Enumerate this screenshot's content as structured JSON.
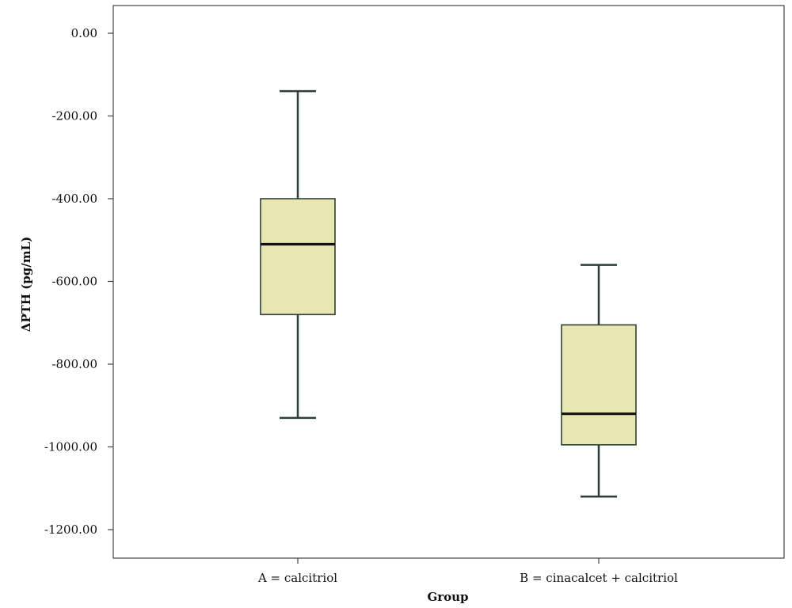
{
  "chart_data": {
    "type": "boxplot",
    "xlabel": "Group",
    "ylabel": "ΔPTH (pg/mL)",
    "ylim": [
      -1300,
      60
    ],
    "yticks": [
      0,
      -200,
      -400,
      -600,
      -800,
      -1000,
      -1200
    ],
    "ytick_labels": [
      "0.00",
      "-200.00",
      "-400.00",
      "-600.00",
      "-800.00",
      "-1000.00",
      "-1200.00"
    ],
    "categories": [
      "A = calcitriol",
      "B = cinacalcet + calcitriol"
    ],
    "boxes": [
      {
        "category": "A = calcitriol",
        "whisker_high": -140,
        "q3": -400,
        "median": -510,
        "q1": -680,
        "whisker_low": -930
      },
      {
        "category": "B = cinacalcet + calcitriol",
        "whisker_high": -560,
        "q3": -705,
        "median": -920,
        "q1": -995,
        "whisker_low": -1120
      }
    ],
    "box_fill": "#e8e6b3",
    "box_stroke": "#2d3f35",
    "grid": false,
    "legend": "none"
  }
}
